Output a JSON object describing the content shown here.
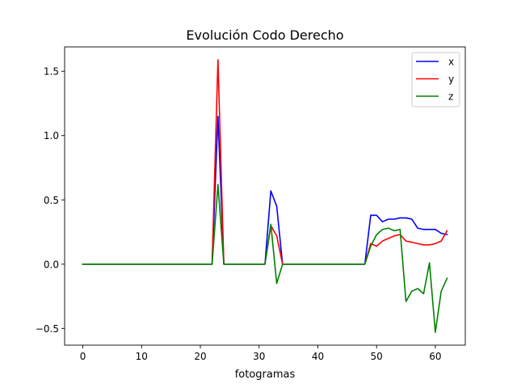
{
  "chart_data": {
    "type": "line",
    "title": "Evolución Codo Derecho",
    "xlabel": "fotogramas",
    "ylabel": "",
    "xlim": [
      -3.1,
      65.1
    ],
    "ylim": [
      -0.63,
      1.69
    ],
    "xticks": [
      0,
      10,
      20,
      30,
      40,
      50,
      60
    ],
    "yticks": [
      -0.5,
      0.0,
      0.5,
      1.0,
      1.5
    ],
    "ytick_labels": [
      "−0.5",
      "0.0",
      "0.5",
      "1.0",
      "1.5"
    ],
    "grid": false,
    "legend_position": "top-right",
    "x": [
      0,
      1,
      2,
      3,
      4,
      5,
      6,
      7,
      8,
      9,
      10,
      11,
      12,
      13,
      14,
      15,
      16,
      17,
      18,
      19,
      20,
      21,
      22,
      23,
      24,
      25,
      26,
      27,
      28,
      29,
      30,
      31,
      32,
      33,
      34,
      35,
      36,
      37,
      38,
      39,
      40,
      41,
      42,
      43,
      44,
      45,
      46,
      47,
      48,
      49,
      50,
      51,
      52,
      53,
      54,
      55,
      56,
      57,
      58,
      59,
      60,
      61,
      62
    ],
    "series": [
      {
        "name": "x",
        "color": "#0000ff",
        "values": [
          0,
          0,
          0,
          0,
          0,
          0,
          0,
          0,
          0,
          0,
          0,
          0,
          0,
          0,
          0,
          0,
          0,
          0,
          0,
          0,
          0,
          0,
          0,
          1.15,
          0,
          0,
          0,
          0,
          0,
          0,
          0,
          0,
          0.57,
          0.45,
          0,
          0,
          0,
          0,
          0,
          0,
          0,
          0,
          0,
          0,
          0,
          0,
          0,
          0,
          0,
          0.38,
          0.38,
          0.33,
          0.35,
          0.35,
          0.36,
          0.36,
          0.35,
          0.28,
          0.27,
          0.27,
          0.27,
          0.24,
          0.23
        ]
      },
      {
        "name": "y",
        "color": "#ff0000",
        "values": [
          0,
          0,
          0,
          0,
          0,
          0,
          0,
          0,
          0,
          0,
          0,
          0,
          0,
          0,
          0,
          0,
          0,
          0,
          0,
          0,
          0,
          0,
          0,
          1.59,
          0,
          0,
          0,
          0,
          0,
          0,
          0,
          0,
          0.3,
          0.22,
          0,
          0,
          0,
          0,
          0,
          0,
          0,
          0,
          0,
          0,
          0,
          0,
          0,
          0,
          0,
          0.16,
          0.14,
          0.18,
          0.2,
          0.22,
          0.23,
          0.18,
          0.17,
          0.16,
          0.15,
          0.15,
          0.16,
          0.18,
          0.26
        ]
      },
      {
        "name": "z",
        "color": "#008000",
        "values": [
          0,
          0,
          0,
          0,
          0,
          0,
          0,
          0,
          0,
          0,
          0,
          0,
          0,
          0,
          0,
          0,
          0,
          0,
          0,
          0,
          0,
          0,
          0,
          0.62,
          0,
          0,
          0,
          0,
          0,
          0,
          0,
          0,
          0.31,
          -0.15,
          0,
          0,
          0,
          0,
          0,
          0,
          0,
          0,
          0,
          0,
          0,
          0,
          0,
          0,
          0,
          0.14,
          0.23,
          0.27,
          0.28,
          0.26,
          0.27,
          -0.29,
          -0.21,
          -0.19,
          -0.23,
          0.01,
          -0.53,
          -0.21,
          -0.11
        ]
      }
    ]
  }
}
